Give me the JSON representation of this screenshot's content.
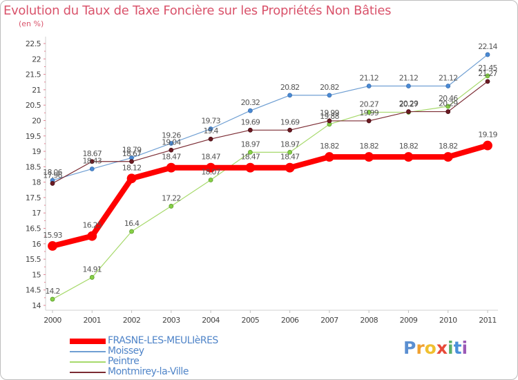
{
  "chart_data": {
    "type": "line",
    "title": "Evolution du Taux de Taxe Foncière sur les Propriétés Non Bâties",
    "ylabel": "(en %)",
    "xlabel": "",
    "ylim": [
      14,
      22.5
    ],
    "yticks": [
      "14",
      "14.5",
      "15",
      "15.5",
      "16",
      "16.5",
      "17",
      "17.5",
      "18",
      "18.5",
      "19",
      "19.5",
      "20",
      "20.5",
      "21",
      "21.5",
      "22",
      "22.5"
    ],
    "categories": [
      "2000",
      "2001",
      "2002",
      "2003",
      "2004",
      "2005",
      "2006",
      "2007",
      "2008",
      "2009",
      "2010",
      "2011"
    ],
    "series": [
      {
        "name": "Moissey",
        "color": "#6f9fd3",
        "values": [
          18.06,
          18.43,
          18.79,
          19.26,
          19.73,
          20.32,
          20.82,
          20.82,
          21.12,
          21.12,
          21.12,
          22.14
        ],
        "labels": [
          "18.06",
          "18.43",
          "18.79",
          "19.26",
          "19.73",
          "20.32",
          "20.82",
          "20.82",
          "21.12",
          "21.12",
          "21.12",
          "22.14"
        ]
      },
      {
        "name": "Peintre",
        "color": "#a6d96a",
        "values": [
          14.2,
          14.91,
          16.4,
          17.22,
          18.07,
          18.97,
          18.97,
          19.88,
          20.27,
          20.27,
          20.46,
          21.45
        ],
        "labels": [
          "14.2",
          "14.91",
          "16.4",
          "17.22",
          "18.07",
          "18.97",
          "18.97",
          "19.88",
          "20.27",
          "20.27",
          "20.46",
          "21.45"
        ]
      },
      {
        "name": "Montmirey-la-Ville",
        "color": "#7b2b33",
        "values": [
          17.96,
          18.67,
          18.67,
          19.04,
          19.4,
          19.69,
          19.69,
          19.99,
          19.99,
          20.29,
          20.29,
          21.27
        ],
        "labels": [
          "17.96",
          "18.67",
          "18.67",
          "19.04",
          "19.4",
          "19.69",
          "19.69",
          "19.99",
          "19.99",
          "20.29",
          "20.29",
          "21.27"
        ]
      },
      {
        "name": "FRASNE-LES-MEULIèRES",
        "color": "#ff0000",
        "values": [
          15.93,
          16.25,
          18.12,
          18.47,
          18.47,
          18.47,
          18.47,
          18.82,
          18.82,
          18.82,
          18.82,
          19.19
        ],
        "labels": [
          "15.93",
          "16.25",
          "18.12",
          "18.47",
          "18.47",
          "18.47",
          "18.47",
          "18.82",
          "18.82",
          "18.82",
          "18.82",
          "19.19"
        ]
      }
    ],
    "legend": {
      "position": "bottom-left",
      "items": [
        {
          "name": "FRASNE-LES-MEULIèRES",
          "color": "#ff0000"
        },
        {
          "name": "Moissey",
          "color": "#6f9fd3"
        },
        {
          "name": "Peintre",
          "color": "#a6d96a"
        },
        {
          "name": "Montmirey-la-Ville",
          "color": "#7b2b33"
        }
      ]
    },
    "grid": false
  },
  "brand": {
    "letters": [
      "P",
      "r",
      "o",
      "x",
      "i",
      "t",
      "i"
    ],
    "colors": [
      "#5b8fd1",
      "#f0a030",
      "#f0c030",
      "#e84a3a",
      "#5bb06a",
      "#4a90d9",
      "#9b59b6"
    ]
  }
}
